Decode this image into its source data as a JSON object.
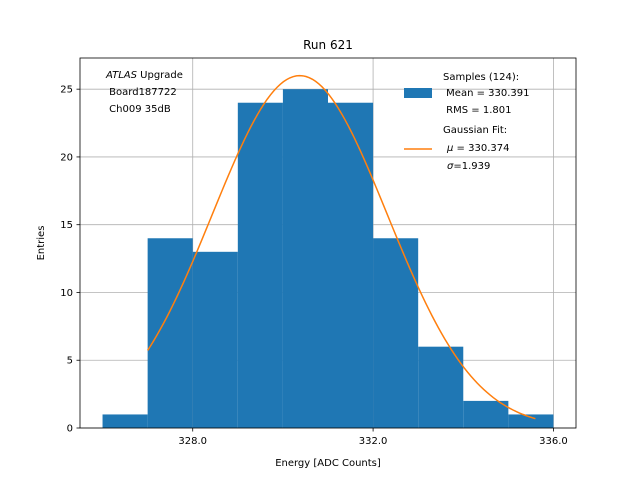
{
  "chart_data": {
    "type": "bar",
    "title": "Run 621",
    "xlabel": "Energy [ADC Counts]",
    "ylabel": "Entries",
    "xlim": [
      325.5,
      336.5
    ],
    "ylim": [
      0,
      27.3
    ],
    "xticks": [
      328.0,
      332.0,
      336.0
    ],
    "xtick_labels": [
      "328.0",
      "332.0",
      "336.0"
    ],
    "yticks": [
      0,
      5,
      10,
      15,
      20,
      25
    ],
    "ytick_labels": [
      "0",
      "5",
      "10",
      "15",
      "20",
      "25"
    ],
    "grid": true,
    "histogram": {
      "bin_edges": [
        326,
        327,
        328,
        329,
        330,
        331,
        332,
        333,
        334,
        335,
        336
      ],
      "counts": [
        1,
        14,
        13,
        24,
        25,
        24,
        14,
        6,
        2,
        1
      ],
      "color": "#1f77b4"
    },
    "gaussian_fit": {
      "mu": 330.374,
      "sigma": 1.939,
      "amplitude": 26.0,
      "x_range": [
        327.0,
        335.6
      ],
      "color": "#ff7f0e"
    },
    "annotation": {
      "line1_italic": "ATLAS",
      "line1_rest": " Upgrade",
      "line2": " Board187722",
      "line3": " Ch009 35dB"
    },
    "legend": {
      "position": "top-right",
      "samples": {
        "line1": "Samples (124):",
        "line2": " Mean = 330.391",
        "line3": " RMS = 1.801"
      },
      "fit": {
        "line1": "Gaussian Fit:",
        "line2_symbol": "μ",
        "line2_rest": " = 330.374",
        "line3_symbol": "σ",
        "line3_rest": "=1.939"
      }
    }
  }
}
